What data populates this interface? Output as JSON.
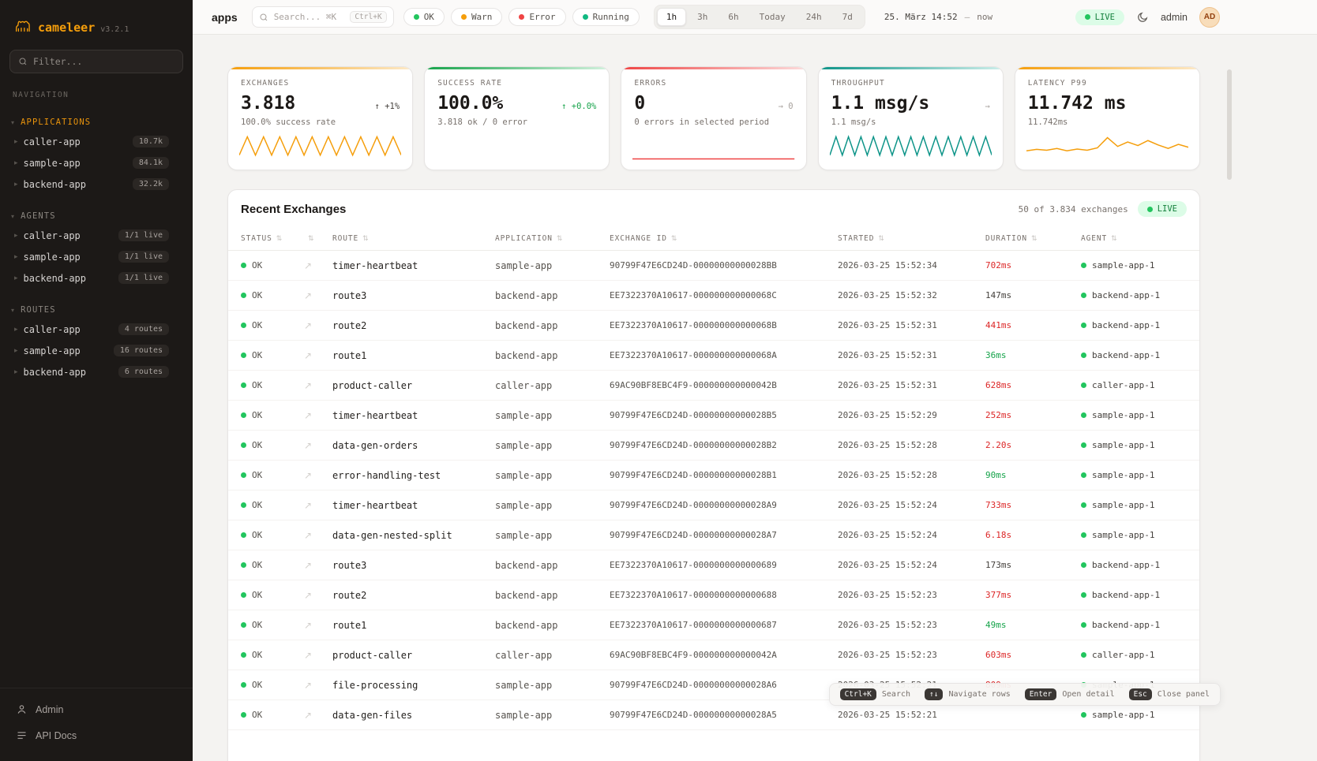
{
  "app": {
    "brand": "cameleer",
    "version": "v3.2.1"
  },
  "sidebar": {
    "filter_placeholder": "Filter...",
    "nav_label": "NAVIGATION",
    "sections": [
      {
        "title": "APPLICATIONS",
        "accent": true,
        "items": [
          {
            "label": "caller-app",
            "badge": "10.7k"
          },
          {
            "label": "sample-app",
            "badge": "84.1k"
          },
          {
            "label": "backend-app",
            "badge": "32.2k"
          }
        ]
      },
      {
        "title": "AGENTS",
        "accent": false,
        "items": [
          {
            "label": "caller-app",
            "badge": "1/1 live"
          },
          {
            "label": "sample-app",
            "badge": "1/1 live"
          },
          {
            "label": "backend-app",
            "badge": "1/1 live"
          }
        ]
      },
      {
        "title": "ROUTES",
        "accent": false,
        "items": [
          {
            "label": "caller-app",
            "badge": "4 routes"
          },
          {
            "label": "sample-app",
            "badge": "16 routes"
          },
          {
            "label": "backend-app",
            "badge": "6 routes"
          }
        ]
      }
    ],
    "footer": [
      {
        "label": "Admin"
      },
      {
        "label": "API Docs"
      }
    ]
  },
  "header": {
    "page": "apps",
    "search_placeholder": "Search... ⌘K",
    "search_kbd": "Ctrl+K",
    "filters": [
      {
        "label": "OK",
        "color": "#22c55e"
      },
      {
        "label": "Warn",
        "color": "#f59e0b"
      },
      {
        "label": "Error",
        "color": "#ef4444"
      },
      {
        "label": "Running",
        "color": "#10b981"
      }
    ],
    "ranges": [
      {
        "label": "1h",
        "active": true
      },
      {
        "label": "3h",
        "active": false
      },
      {
        "label": "6h",
        "active": false
      },
      {
        "label": "Today",
        "active": false
      },
      {
        "label": "24h",
        "active": false
      },
      {
        "label": "7d",
        "active": false
      }
    ],
    "time_from": "25. März 14:52",
    "time_sep": "—",
    "time_to": "now",
    "live": "LIVE",
    "user": "admin",
    "avatar": "AD"
  },
  "stats": [
    {
      "label": "EXCHANGES",
      "value": "3.818",
      "delta": "↑ +1%",
      "delta_color": "#44403c",
      "sub": "100.0% success rate",
      "accent": "#f59e0b",
      "accent2": "#fce9c8",
      "spark_color": "#f59e0b",
      "spark": [
        75,
        12,
        75,
        12,
        75,
        12,
        75,
        12,
        75,
        12,
        75,
        12,
        75,
        12,
        75,
        12,
        75,
        12,
        75,
        12,
        75
      ]
    },
    {
      "label": "SUCCESS RATE",
      "value": "100.0%",
      "delta": "↑ +0.0%",
      "delta_color": "#16a34a",
      "sub": "3.818 ok / 0 error",
      "accent": "#16a34a",
      "accent2": "#d3f1de",
      "spark_color": "#16a34a",
      "spark": []
    },
    {
      "label": "ERRORS",
      "value": "0",
      "delta": "→ 0",
      "delta_color": "#a8a29e",
      "sub": "0 errors in selected period",
      "accent": "#ef4444",
      "accent2": "#fcdcdc",
      "spark_color": "#ef4444",
      "spark": [
        88,
        88
      ]
    },
    {
      "label": "THROUGHPUT",
      "value": "1.1 msg/s",
      "delta": "→",
      "delta_color": "#a8a29e",
      "sub": "1.1 msg/s",
      "accent": "#0d9488",
      "accent2": "#cdeeea",
      "spark_color": "#0d9488",
      "spark": [
        75,
        12,
        75,
        12,
        75,
        12,
        75,
        12,
        75,
        12,
        75,
        12,
        75,
        12,
        75,
        12,
        75,
        12,
        75,
        12,
        75,
        12,
        75,
        12,
        75,
        12,
        75
      ]
    },
    {
      "label": "LATENCY P99",
      "value": "11.742 ms",
      "delta": "",
      "delta_color": "#a8a29e",
      "sub": "11.742ms",
      "accent": "#f59e0b",
      "accent2": "#fce9c8",
      "spark_color": "#f59e0b",
      "spark": [
        60,
        55,
        58,
        52,
        60,
        54,
        58,
        50,
        15,
        45,
        30,
        42,
        25,
        40,
        52,
        38,
        48
      ]
    }
  ],
  "panel": {
    "title": "Recent Exchanges",
    "count": "50 of 3.834 exchanges",
    "live": "LIVE",
    "columns": [
      "STATUS",
      "",
      "ROUTE",
      "APPLICATION",
      "EXCHANGE ID",
      "STARTED",
      "DURATION",
      "AGENT"
    ],
    "rows": [
      {
        "status": "OK",
        "route": "timer-heartbeat",
        "app": "sample-app",
        "exchange": "90799F47E6CD24D-00000000000028BB",
        "started": "2026-03-25 15:52:34",
        "duration": "702ms",
        "level": "slow",
        "agent": "sample-app-1"
      },
      {
        "status": "OK",
        "route": "route3",
        "app": "backend-app",
        "exchange": "EE7322370A10617-000000000000068C",
        "started": "2026-03-25 15:52:32",
        "duration": "147ms",
        "level": "mid",
        "agent": "backend-app-1"
      },
      {
        "status": "OK",
        "route": "route2",
        "app": "backend-app",
        "exchange": "EE7322370A10617-000000000000068B",
        "started": "2026-03-25 15:52:31",
        "duration": "441ms",
        "level": "slow",
        "agent": "backend-app-1"
      },
      {
        "status": "OK",
        "route": "route1",
        "app": "backend-app",
        "exchange": "EE7322370A10617-000000000000068A",
        "started": "2026-03-25 15:52:31",
        "duration": "36ms",
        "level": "fast",
        "agent": "backend-app-1"
      },
      {
        "status": "OK",
        "route": "product-caller",
        "app": "caller-app",
        "exchange": "69AC90BF8EBC4F9-000000000000042B",
        "started": "2026-03-25 15:52:31",
        "duration": "628ms",
        "level": "slow",
        "agent": "caller-app-1"
      },
      {
        "status": "OK",
        "route": "timer-heartbeat",
        "app": "sample-app",
        "exchange": "90799F47E6CD24D-00000000000028B5",
        "started": "2026-03-25 15:52:29",
        "duration": "252ms",
        "level": "slow",
        "agent": "sample-app-1"
      },
      {
        "status": "OK",
        "route": "data-gen-orders",
        "app": "sample-app",
        "exchange": "90799F47E6CD24D-00000000000028B2",
        "started": "2026-03-25 15:52:28",
        "duration": "2.20s",
        "level": "slow",
        "agent": "sample-app-1"
      },
      {
        "status": "OK",
        "route": "error-handling-test",
        "app": "sample-app",
        "exchange": "90799F47E6CD24D-00000000000028B1",
        "started": "2026-03-25 15:52:28",
        "duration": "90ms",
        "level": "fast",
        "agent": "sample-app-1"
      },
      {
        "status": "OK",
        "route": "timer-heartbeat",
        "app": "sample-app",
        "exchange": "90799F47E6CD24D-00000000000028A9",
        "started": "2026-03-25 15:52:24",
        "duration": "733ms",
        "level": "slow",
        "agent": "sample-app-1"
      },
      {
        "status": "OK",
        "route": "data-gen-nested-split",
        "app": "sample-app",
        "exchange": "90799F47E6CD24D-00000000000028A7",
        "started": "2026-03-25 15:52:24",
        "duration": "6.18s",
        "level": "slow",
        "agent": "sample-app-1"
      },
      {
        "status": "OK",
        "route": "route3",
        "app": "backend-app",
        "exchange": "EE7322370A10617-0000000000000689",
        "started": "2026-03-25 15:52:24",
        "duration": "173ms",
        "level": "mid",
        "agent": "backend-app-1"
      },
      {
        "status": "OK",
        "route": "route2",
        "app": "backend-app",
        "exchange": "EE7322370A10617-0000000000000688",
        "started": "2026-03-25 15:52:23",
        "duration": "377ms",
        "level": "slow",
        "agent": "backend-app-1"
      },
      {
        "status": "OK",
        "route": "route1",
        "app": "backend-app",
        "exchange": "EE7322370A10617-0000000000000687",
        "started": "2026-03-25 15:52:23",
        "duration": "49ms",
        "level": "fast",
        "agent": "backend-app-1"
      },
      {
        "status": "OK",
        "route": "product-caller",
        "app": "caller-app",
        "exchange": "69AC90BF8EBC4F9-000000000000042A",
        "started": "2026-03-25 15:52:23",
        "duration": "603ms",
        "level": "slow",
        "agent": "caller-app-1"
      },
      {
        "status": "OK",
        "route": "file-processing",
        "app": "sample-app",
        "exchange": "90799F47E6CD24D-00000000000028A6",
        "started": "2026-03-25 15:52:21",
        "duration": "809ms",
        "level": "slow",
        "agent": "sample-app-1"
      },
      {
        "status": "OK",
        "route": "data-gen-files",
        "app": "sample-app",
        "exchange": "90799F47E6CD24D-00000000000028A5",
        "started": "2026-03-25 15:52:21",
        "duration": "",
        "level": "mid",
        "agent": "sample-app-1"
      }
    ]
  },
  "hints": [
    {
      "key": "Ctrl+K",
      "label": "Search"
    },
    {
      "key": "↑↓",
      "label": "Navigate rows"
    },
    {
      "key": "Enter",
      "label": "Open detail"
    },
    {
      "key": "Esc",
      "label": "Close panel"
    }
  ]
}
